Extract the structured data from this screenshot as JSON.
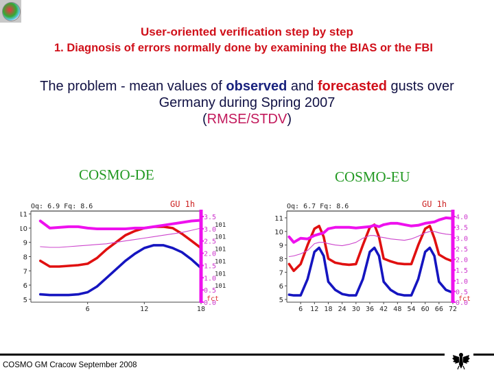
{
  "header": {
    "title": "User-oriented verification step by step",
    "subtitle": "1. Diagnosis of errors normally done by examining the BIAS or the FBI"
  },
  "description": {
    "line1_pre": "The problem - mean values of ",
    "line1_observed": "observed",
    "line1_mid": " and ",
    "line1_forecasted": "forecasted",
    "line1_post": " gusts over",
    "line2": "Germany during Spring 2007",
    "line3_open": "(",
    "line3_metric": "RMSE/STDV",
    "line3_close": ")"
  },
  "footer": {
    "text": "COSMO GM Cracow September 2008"
  },
  "colors": {
    "title": "#d0101a",
    "observed": "#1a237e",
    "forecast": "#d0101a",
    "metric": "#c2185b",
    "model_label": "#229922",
    "rmse": "#ff00ff",
    "stdv": "#cc44cc"
  },
  "chart_data": [
    {
      "type": "line",
      "title": "COSMO-DE",
      "header_left": "Oq: 6.9 Fq: 8.6",
      "header_right": "GU 1h",
      "xlabel": "",
      "ylabel": "",
      "x_ticks": [
        "6",
        "12",
        "18"
      ],
      "xlim": [
        0,
        18
      ],
      "y_ticks": [
        "5",
        "6",
        "7",
        "8",
        "9",
        "10",
        "11"
      ],
      "ylim": [
        4.8,
        11.2
      ],
      "y2_ticks": [
        "0.0",
        "0.5",
        "1.0",
        "1.5",
        "2.0",
        "2.5",
        "3.0",
        "3.5"
      ],
      "y2_label": "fct",
      "y2_side_text": "101",
      "x": [
        1,
        2,
        3,
        4,
        5,
        6,
        7,
        8,
        9,
        10,
        11,
        12,
        13,
        14,
        15,
        16,
        17,
        18
      ],
      "series": [
        {
          "name": "observed (blue)",
          "values": [
            5.35,
            5.3,
            5.3,
            5.3,
            5.35,
            5.5,
            5.9,
            6.5,
            7.1,
            7.7,
            8.2,
            8.6,
            8.8,
            8.8,
            8.6,
            8.3,
            7.8,
            7.2
          ]
        },
        {
          "name": "forecasted (red)",
          "values": [
            7.7,
            7.3,
            7.3,
            7.35,
            7.4,
            7.5,
            7.9,
            8.5,
            9.0,
            9.5,
            9.8,
            10.0,
            10.1,
            10.1,
            10.0,
            9.6,
            9.1,
            8.6
          ]
        },
        {
          "name": "RMSE (magenta thick)",
          "values": [
            10.5,
            10.0,
            10.05,
            10.1,
            10.1,
            10.0,
            9.95,
            9.95,
            9.95,
            9.95,
            10.0,
            10.0,
            10.1,
            10.2,
            10.3,
            10.4,
            10.5,
            10.55
          ]
        },
        {
          "name": "STDV (magenta thin)",
          "values": [
            8.7,
            8.65,
            8.65,
            8.7,
            8.75,
            8.8,
            8.85,
            8.9,
            9.0,
            9.1,
            9.2,
            9.3,
            9.4,
            9.5,
            9.6,
            9.7,
            9.85,
            10.0
          ]
        }
      ]
    },
    {
      "type": "line",
      "title": "COSMO-EU",
      "header_left": "Oq: 6.7 Fq: 8.6",
      "header_right": "GU 1h",
      "xlabel": "",
      "ylabel": "",
      "x_ticks": [
        "6",
        "12",
        "18",
        "24",
        "30",
        "36",
        "42",
        "48",
        "54",
        "60",
        "66",
        "72"
      ],
      "xlim": [
        0,
        72
      ],
      "y_ticks": [
        "5",
        "6",
        "7",
        "8",
        "9",
        "10",
        "11"
      ],
      "ylim": [
        4.8,
        11.5
      ],
      "y2_ticks": [
        "0.0",
        "0.5",
        "1.0",
        "1.5",
        "2.0",
        "2.5",
        "3.0",
        "3.5",
        "4.0"
      ],
      "y2_label": "fct",
      "x": [
        1,
        3,
        6,
        9,
        12,
        14,
        16,
        18,
        21,
        24,
        27,
        30,
        33,
        36,
        38,
        40,
        42,
        45,
        48,
        51,
        54,
        57,
        60,
        62,
        64,
        66,
        69,
        72
      ],
      "series": [
        {
          "name": "observed (blue)",
          "values": [
            5.35,
            5.3,
            5.3,
            6.5,
            8.5,
            8.8,
            8.2,
            6.3,
            5.7,
            5.4,
            5.3,
            5.3,
            6.5,
            8.5,
            8.8,
            8.2,
            6.3,
            5.7,
            5.4,
            5.3,
            5.3,
            6.5,
            8.5,
            8.8,
            8.2,
            6.3,
            5.7,
            5.5
          ]
        },
        {
          "name": "forecasted (red)",
          "values": [
            7.6,
            7.1,
            7.6,
            9.0,
            10.2,
            10.4,
            9.6,
            8.0,
            7.7,
            7.6,
            7.55,
            7.6,
            9.0,
            10.3,
            10.5,
            9.6,
            8.0,
            7.8,
            7.65,
            7.6,
            7.6,
            9.0,
            10.2,
            10.4,
            9.5,
            8.3,
            8.0,
            7.8
          ]
        },
        {
          "name": "RMSE (magenta thick)",
          "values": [
            9.6,
            9.2,
            9.5,
            9.45,
            9.7,
            9.8,
            9.9,
            10.2,
            10.3,
            10.3,
            10.3,
            10.25,
            10.3,
            10.35,
            10.45,
            10.35,
            10.5,
            10.6,
            10.6,
            10.5,
            10.4,
            10.45,
            10.6,
            10.65,
            10.7,
            10.85,
            11.0,
            10.95
          ]
        },
        {
          "name": "STDV (magenta thin)",
          "values": [
            8.15,
            8.2,
            8.35,
            8.6,
            9.1,
            9.2,
            9.2,
            9.1,
            9.0,
            8.95,
            9.05,
            9.2,
            9.5,
            9.7,
            9.7,
            9.6,
            9.55,
            9.45,
            9.4,
            9.35,
            9.45,
            9.65,
            9.9,
            10.0,
            10.0,
            9.9,
            9.8,
            9.75
          ]
        }
      ]
    }
  ]
}
